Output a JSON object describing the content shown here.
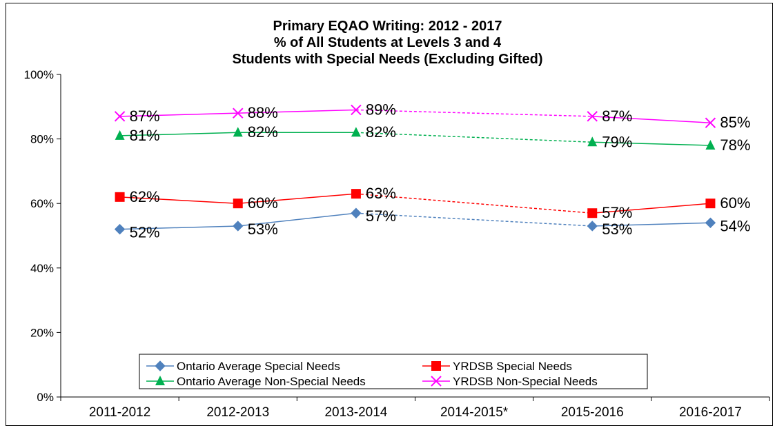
{
  "chart_data": {
    "type": "line",
    "title": [
      "Primary  EQAO Writing: 2012 - 2017",
      "% of All Students at Levels 3 and 4",
      "Students with Special Needs (Excluding Gifted)"
    ],
    "categories": [
      "2011-2012",
      "2012-2013",
      "2013-2014",
      "2014-2015*",
      "2015-2016",
      "2016-2017"
    ],
    "ylim": [
      0,
      100
    ],
    "yticks": [
      "0%",
      "20%",
      "40%",
      "60%",
      "80%",
      "100%"
    ],
    "grid": false,
    "legend_position": "bottom-center",
    "series": [
      {
        "name": "Ontario Average Special Needs",
        "color": "#4F81BD",
        "marker": "diamond",
        "values": [
          52,
          53,
          57,
          null,
          53,
          54
        ],
        "labels": [
          "52%",
          "53%",
          "57%",
          null,
          "53%",
          "54%"
        ]
      },
      {
        "name": "YRDSB Special Needs",
        "color": "#FF0000",
        "marker": "square",
        "values": [
          62,
          60,
          63,
          null,
          57,
          60
        ],
        "labels": [
          "62%",
          "60%",
          "63%",
          null,
          "57%",
          "60%"
        ]
      },
      {
        "name": "Ontario Average Non-Special Needs",
        "color": "#00B050",
        "marker": "triangle",
        "values": [
          81,
          82,
          82,
          null,
          79,
          78
        ],
        "labels": [
          "81%",
          "82%",
          "82%",
          null,
          "79%",
          "78%"
        ]
      },
      {
        "name": "YRDSB Non-Special Needs",
        "color": "#FF00FF",
        "marker": "x",
        "values": [
          87,
          88,
          89,
          null,
          87,
          85
        ],
        "labels": [
          "87%",
          "88%",
          "89%",
          null,
          "87%",
          "85%"
        ]
      }
    ]
  }
}
